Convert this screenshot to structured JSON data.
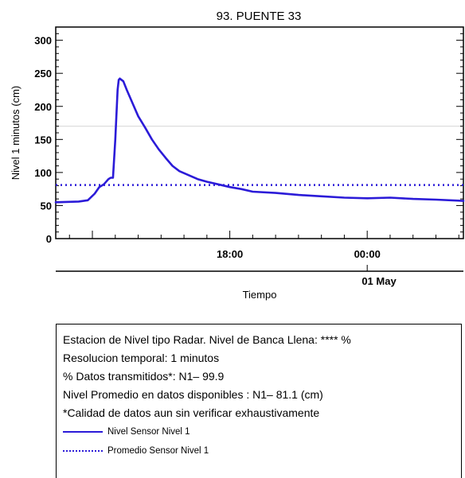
{
  "chart_data": {
    "type": "line",
    "title": "93. PUENTE 33",
    "xlabel": "Tiempo",
    "ylabel": "Nivel 1 minutos (cm)",
    "ylim": [
      0,
      320
    ],
    "yticks": [
      0,
      50,
      100,
      150,
      200,
      250,
      300
    ],
    "xticks": [
      {
        "label": "18:00",
        "hours": 18
      },
      {
        "label": "00:00",
        "hours": 24
      }
    ],
    "xlim_hours": [
      10.4,
      28.2
    ],
    "date_label": "01 May",
    "date_label_hours": 24,
    "reference_line": {
      "value": 170,
      "color": "#d9d9d9"
    },
    "series": [
      {
        "name": "Nivel Sensor Nivel 1",
        "style": "solid",
        "color": "#2b1bd8",
        "x_hours": [
          10.4,
          11.4,
          11.8,
          12.1,
          12.3,
          12.5,
          12.7,
          12.8,
          12.9,
          13.0,
          13.1,
          13.15,
          13.2,
          13.35,
          13.5,
          13.75,
          14.0,
          14.3,
          14.6,
          14.9,
          15.2,
          15.5,
          15.8,
          16.2,
          16.6,
          17.0,
          17.5,
          18.0,
          18.5,
          19.0,
          20.0,
          21.0,
          22.0,
          23.0,
          24.0,
          25.0,
          26.0,
          27.0,
          28.2
        ],
        "values": [
          55,
          56,
          58,
          68,
          78,
          82,
          90,
          92,
          92,
          150,
          225,
          240,
          242,
          238,
          225,
          205,
          185,
          168,
          150,
          135,
          122,
          110,
          102,
          96,
          90,
          86,
          82,
          78,
          75,
          71,
          69,
          66,
          64,
          62,
          61,
          62,
          60,
          59,
          57
        ]
      },
      {
        "name": "Promedio Sensor Nivel 1",
        "style": "dotted",
        "color": "#2b1bd8",
        "value": 81.1
      }
    ]
  },
  "info": {
    "line1": "Estacion de Nivel tipo Radar. Nivel de Banca Llena: **** %",
    "line2": "Resolucion temporal: 1 minutos",
    "line3": "% Datos transmitidos*: N1– 99.9",
    "line4": "Nivel Promedio en datos disponibles : N1– 81.1 (cm)",
    "line5": "*Calidad de datos aun sin verificar exhaustivamente"
  },
  "legend": {
    "solid_label": "Nivel Sensor Nivel 1",
    "dotted_label": "Promedio Sensor Nivel 1"
  }
}
